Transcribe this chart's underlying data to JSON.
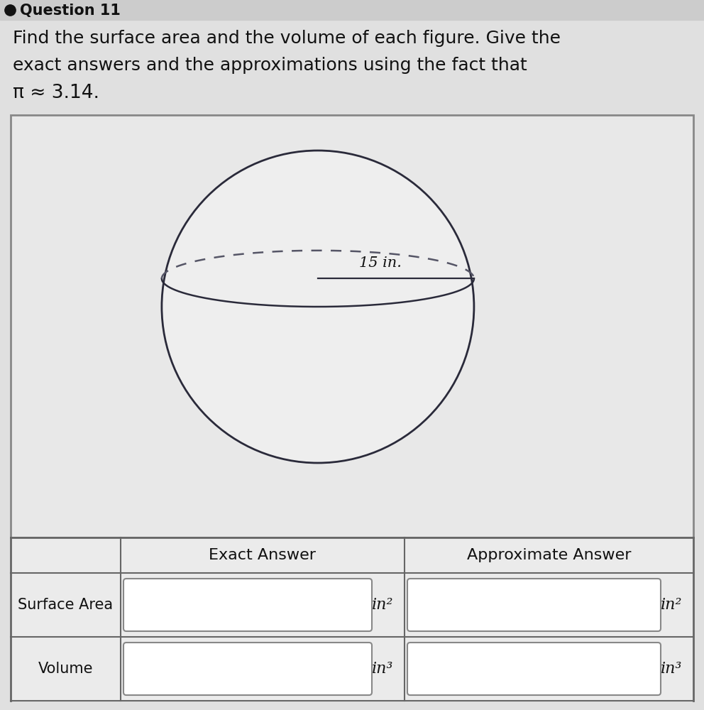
{
  "bg_color": "#d8d8d8",
  "page_bg": "#e0e0e0",
  "box_bg": "#ebebeb",
  "white": "#ffffff",
  "border_color": "#555555",
  "text_color": "#1a1a1a",
  "dark_color": "#111111",
  "question_text": "Question 11",
  "instruction_line1": "Find the surface area and the volume of each figure. Give the",
  "instruction_line2": "exact answers and the approximations using the fact that",
  "instruction_line3": "π ≈ 3.14.",
  "radius_label": "15 in.",
  "col1_header": "Exact Answer",
  "col2_header": "Approximate Answer",
  "row1_label": "Surface Area",
  "row2_label": "Volume",
  "unit_area": "in²",
  "unit_vol": "in³",
  "sphere_line_color": "#2a2a3a",
  "dashed_line_color": "#555566",
  "header_fontsize": 18,
  "body_fontsize": 16,
  "table_label_fontsize": 15,
  "unit_fontsize": 16
}
